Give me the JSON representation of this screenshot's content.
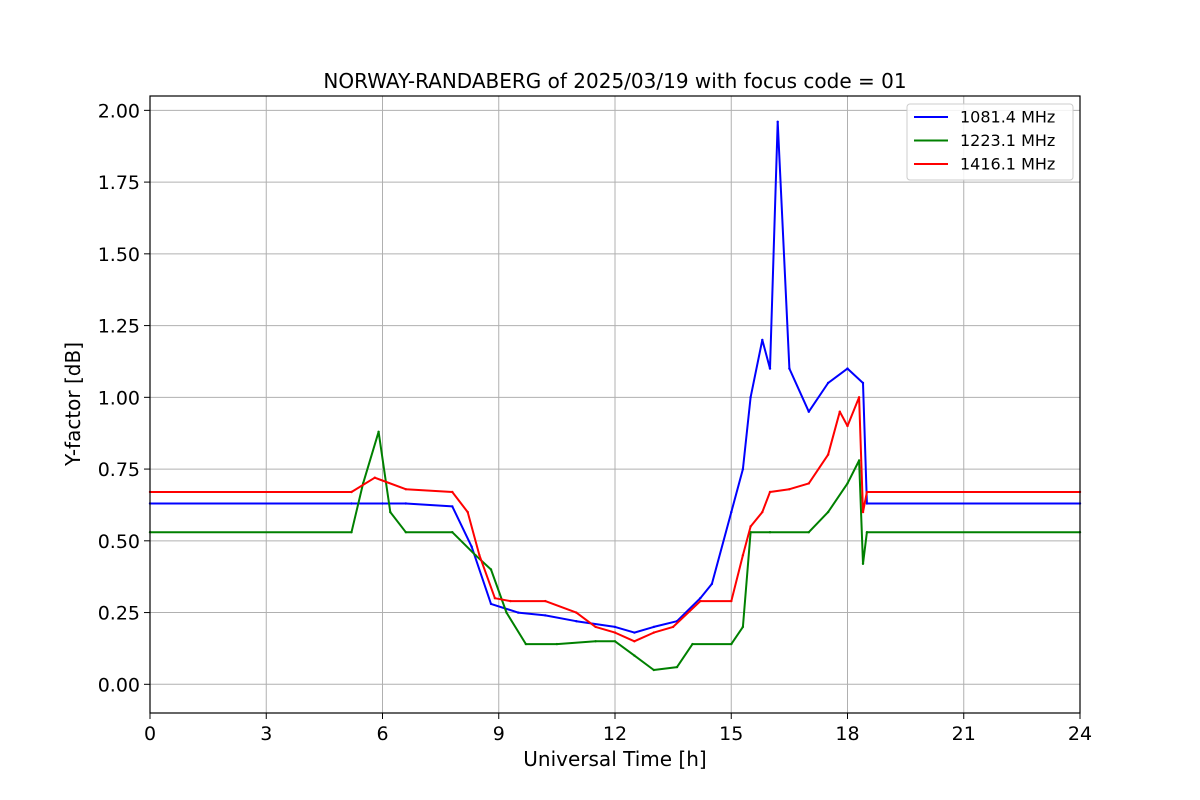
{
  "chart_data": {
    "type": "line",
    "title": "NORWAY-RANDABERG of 2025/03/19 with focus code = 01",
    "xlabel": "Universal Time [h]",
    "ylabel": "Y-factor [dB]",
    "xlim": [
      0,
      24
    ],
    "ylim": [
      -0.1,
      2.05
    ],
    "xticks": [
      0,
      3,
      6,
      9,
      12,
      15,
      18,
      21,
      24
    ],
    "xtick_labels": [
      "0",
      "3",
      "6",
      "9",
      "12",
      "15",
      "18",
      "21",
      "24"
    ],
    "yticks": [
      0.0,
      0.25,
      0.5,
      0.75,
      1.0,
      1.25,
      1.5,
      1.75,
      2.0
    ],
    "ytick_labels": [
      "0.00",
      "0.25",
      "0.50",
      "0.75",
      "1.00",
      "1.25",
      "1.50",
      "1.75",
      "2.00"
    ],
    "grid": true,
    "legend_position": "top-right",
    "series": [
      {
        "name": "1081.4 MHz",
        "color": "#0000ff",
        "x": [
          0,
          5.2,
          6.0,
          6.6,
          7.8,
          8.3,
          8.8,
          9.5,
          10.2,
          11.0,
          12.0,
          12.5,
          13.0,
          13.6,
          14.2,
          14.5,
          15.0,
          15.3,
          15.5,
          15.8,
          16.0,
          16.2,
          16.5,
          17.0,
          17.5,
          18.0,
          18.4,
          18.5,
          24
        ],
        "y": [
          0.63,
          0.63,
          0.63,
          0.63,
          0.62,
          0.48,
          0.28,
          0.25,
          0.24,
          0.22,
          0.2,
          0.18,
          0.2,
          0.22,
          0.3,
          0.35,
          0.6,
          0.75,
          1.0,
          1.2,
          1.1,
          1.96,
          1.1,
          0.95,
          1.05,
          1.1,
          1.05,
          0.63,
          0.63
        ]
      },
      {
        "name": "1223.1 MHz",
        "color": "#008000",
        "x": [
          0,
          5.2,
          5.5,
          5.9,
          6.2,
          6.6,
          7.8,
          8.4,
          8.8,
          9.2,
          9.7,
          10.5,
          11.5,
          12.0,
          12.5,
          13.0,
          13.6,
          14.0,
          15.0,
          15.3,
          15.5,
          16.0,
          17.0,
          17.5,
          18.0,
          18.3,
          18.4,
          18.5,
          24
        ],
        "y": [
          0.53,
          0.53,
          0.7,
          0.88,
          0.6,
          0.53,
          0.53,
          0.45,
          0.4,
          0.25,
          0.14,
          0.14,
          0.15,
          0.15,
          0.1,
          0.05,
          0.06,
          0.14,
          0.14,
          0.2,
          0.53,
          0.53,
          0.53,
          0.6,
          0.7,
          0.78,
          0.42,
          0.53,
          0.53
        ]
      },
      {
        "name": "1416.1 MHz",
        "color": "#ff0000",
        "x": [
          0,
          5.2,
          5.8,
          6.6,
          7.8,
          8.2,
          8.5,
          8.9,
          9.3,
          10.2,
          11.0,
          11.5,
          12.0,
          12.5,
          13.0,
          13.5,
          14.2,
          15.0,
          15.3,
          15.5,
          15.8,
          16.0,
          16.5,
          17.0,
          17.5,
          17.8,
          18.0,
          18.3,
          18.4,
          18.5,
          24
        ],
        "y": [
          0.67,
          0.67,
          0.72,
          0.68,
          0.67,
          0.6,
          0.45,
          0.3,
          0.29,
          0.29,
          0.25,
          0.2,
          0.18,
          0.15,
          0.18,
          0.2,
          0.29,
          0.29,
          0.45,
          0.55,
          0.6,
          0.67,
          0.68,
          0.7,
          0.8,
          0.95,
          0.9,
          1.0,
          0.6,
          0.67,
          0.67
        ]
      }
    ]
  }
}
